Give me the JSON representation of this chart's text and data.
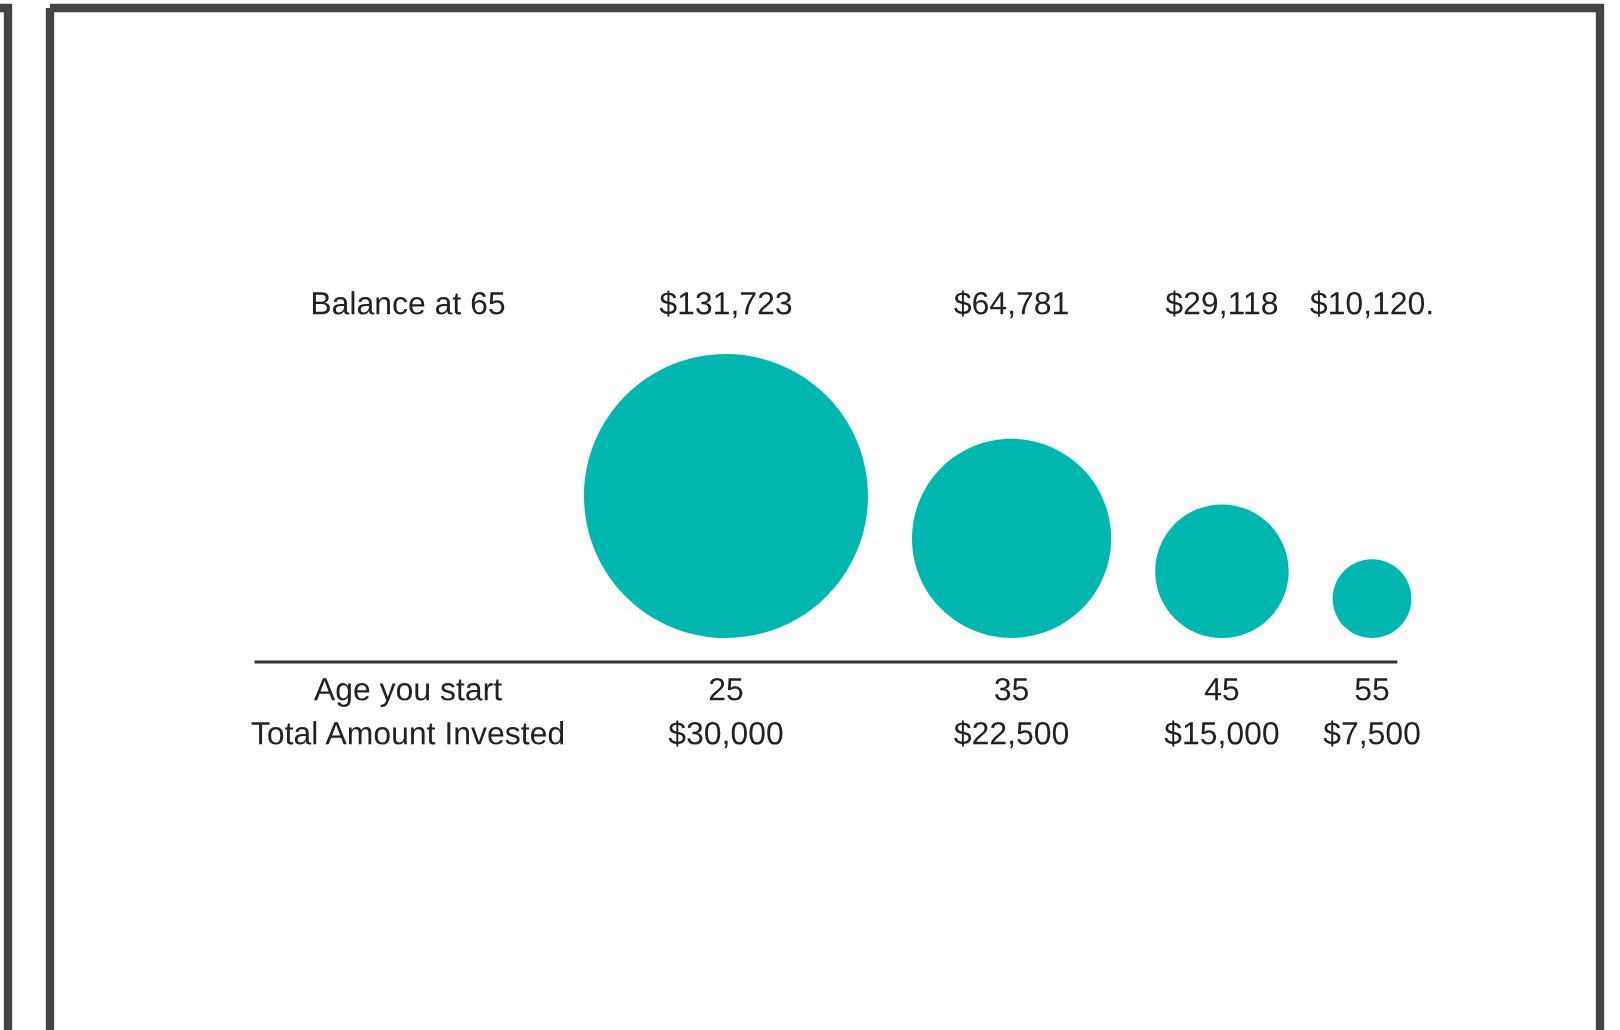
{
  "chart_data": {
    "type": "other",
    "categories": [
      "25",
      "35",
      "45",
      "55"
    ],
    "values": [
      131723,
      64781,
      29118,
      10120
    ],
    "value_labels": [
      "$131,723",
      "$64,781",
      "$29,118",
      "$10,120."
    ],
    "color": "#00b7b0",
    "annotations": [
      "Balance at 65",
      "Age you start",
      "Total Amount Invested",
      {
        "text": "$30,000",
        "x": "25"
      },
      {
        "text": "$22,500",
        "x": "35"
      },
      {
        "text": "$15,000",
        "x": "45"
      },
      {
        "text": "$7,500",
        "x": "55"
      }
    ]
  }
}
